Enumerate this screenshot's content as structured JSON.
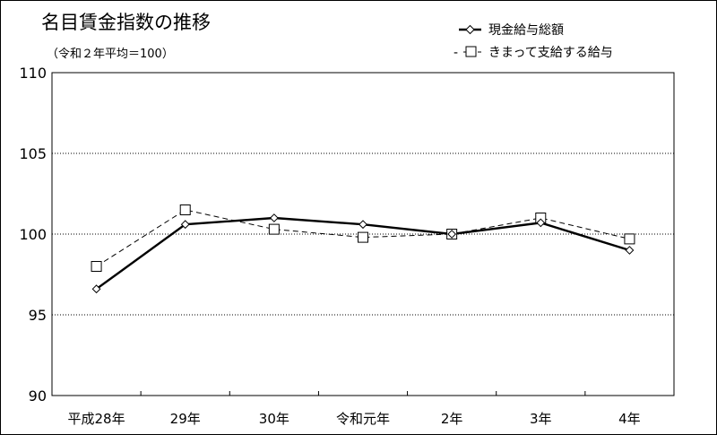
{
  "chart_data": {
    "type": "line",
    "title": "名目賃金指数の推移",
    "subtitle": "（令和２年平均＝100）",
    "categories": [
      "平成28年",
      "29年",
      "30年",
      "令和元年",
      "2年",
      "3年",
      "4年"
    ],
    "y_ticks": [
      "110",
      "105",
      "100",
      "95",
      "90"
    ],
    "ylim": [
      90,
      110
    ],
    "y_tick_step": 5,
    "grid": "horizontal dotted",
    "legend_position": "top-right",
    "series": [
      {
        "name": "現金給与総額",
        "legend_prefix": "",
        "values": [
          96.6,
          100.6,
          101.0,
          100.6,
          100.0,
          100.7,
          99.0
        ],
        "line_style": "solid",
        "marker": "diamond",
        "color": "#000000"
      },
      {
        "name": "きまって支給する給与",
        "legend_prefix": "-",
        "values": [
          98.0,
          101.5,
          100.3,
          99.8,
          100.0,
          101.0,
          99.7
        ],
        "line_style": "dashed",
        "marker": "square",
        "color": "#000000"
      }
    ]
  }
}
